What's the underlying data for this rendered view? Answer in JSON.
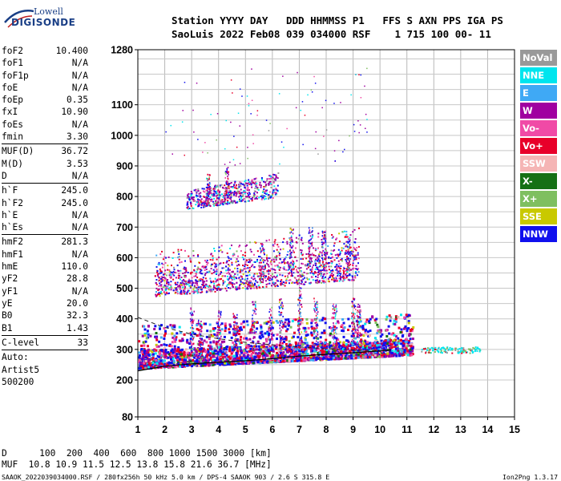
{
  "brand": {
    "line1": "Lowell",
    "line2": "DIGISONDE"
  },
  "header": {
    "line1": "Station YYYY DAY   DDD HHMMSS P1   FFS S AXN PPS IGA PS",
    "line2": "SaoLuis 2022 Feb08 039 034000 RSF    1 715 100 00- 11"
  },
  "params_a": [
    {
      "label": "foF2",
      "value": "10.400"
    },
    {
      "label": "foF1",
      "value": "N/A"
    },
    {
      "label": "foF1p",
      "value": "N/A"
    },
    {
      "label": "foE",
      "value": "N/A"
    },
    {
      "label": "foEp",
      "value": "0.35"
    },
    {
      "label": "fxI",
      "value": "10.90"
    },
    {
      "label": "foEs",
      "value": "N/A"
    },
    {
      "label": "fmin",
      "value": "3.30"
    }
  ],
  "params_b": [
    {
      "label": "MUF(D)",
      "value": "36.72"
    },
    {
      "label": "M(D)",
      "value": "3.53"
    },
    {
      "label": "D",
      "value": "N/A"
    }
  ],
  "params_c": [
    {
      "label": "h`F",
      "value": "245.0"
    },
    {
      "label": "h`F2",
      "value": "245.0"
    },
    {
      "label": "h`E",
      "value": "N/A"
    },
    {
      "label": "h`Es",
      "value": "N/A"
    }
  ],
  "params_d": [
    {
      "label": "hmF2",
      "value": "281.3"
    },
    {
      "label": "hmF1",
      "value": "N/A"
    },
    {
      "label": "hmE",
      "value": "110.0"
    },
    {
      "label": "yF2",
      "value": "28.8"
    },
    {
      "label": "yF1",
      "value": "N/A"
    },
    {
      "label": "yE",
      "value": "20.0"
    },
    {
      "label": "B0",
      "value": "32.3"
    },
    {
      "label": "B1",
      "value": "1.43"
    }
  ],
  "params_e": [
    {
      "label": "C-level",
      "value": "33"
    }
  ],
  "auto": {
    "line1": "Auto:",
    "line2": "Artist5",
    "line3": "500200"
  },
  "legend": [
    {
      "label": "NoVal",
      "color": "#999999"
    },
    {
      "label": "NNE",
      "color": "#00e5ee"
    },
    {
      "label": "E",
      "color": "#3fa9f5"
    },
    {
      "label": "W",
      "color": "#a000a0"
    },
    {
      "label": "Vo-",
      "color": "#f04aa6"
    },
    {
      "label": "Vo+",
      "color": "#e8002a"
    },
    {
      "label": "SSW",
      "color": "#f5b5b5"
    },
    {
      "label": "X-",
      "color": "#157015"
    },
    {
      "label": "X+",
      "color": "#7fbf60"
    },
    {
      "label": "SSE",
      "color": "#c9c900"
    },
    {
      "label": "NNW",
      "color": "#1010ee"
    }
  ],
  "footer": {
    "line1": "D      100  200  400  600  800 1000 1500 3000 [km]",
    "line2": "MUF  10.8 10.9 11.5 12.5 13.8 15.8 21.6 36.7 [MHz]",
    "line3": "SAAOK_2022039034000.RSF / 280fx256h 50 kHz 5.0 km / DPS-4 SAAOK 903 / 2.6 S 315.8 E",
    "version": "Ion2Png 1.3.17"
  },
  "chart_data": {
    "type": "scatter",
    "x_axis": {
      "min": 1,
      "max": 15,
      "ticks": [
        1,
        2,
        3,
        4,
        5,
        6,
        7,
        8,
        9,
        10,
        11,
        12,
        13,
        14,
        15
      ]
    },
    "y_axis": {
      "min": 80,
      "max": 1280,
      "ticks": [
        80,
        200,
        300,
        400,
        500,
        600,
        700,
        800,
        900,
        1000,
        1100,
        1280
      ]
    },
    "grid": true,
    "trace_clusters": [
      {
        "name": "F2 1st hop",
        "x_range": [
          1.0,
          11.2
        ],
        "h_lower": [
          240,
          285
        ],
        "h_upper": [
          300,
          340
        ]
      },
      {
        "name": "F2 2nd hop",
        "x_range": [
          1.6,
          9.2
        ],
        "h_lower": [
          475,
          530
        ],
        "h_upper": [
          560,
          640
        ]
      },
      {
        "name": "F2 3rd hop",
        "x_range": [
          2.8,
          6.2
        ],
        "h_lower": [
          760,
          800
        ],
        "h_upper": [
          820,
          880
        ]
      }
    ],
    "extraordinary_trace": {
      "x_range": [
        11.5,
        13.7
      ],
      "h": [
        290,
        310
      ]
    },
    "profile_curve": [
      [
        1,
        230
      ],
      [
        2,
        245
      ],
      [
        3,
        253
      ],
      [
        4,
        258
      ],
      [
        5,
        263
      ],
      [
        6,
        270
      ],
      [
        7,
        278
      ],
      [
        8,
        284
      ],
      [
        9,
        289
      ],
      [
        10,
        295
      ],
      [
        10.4,
        300
      ]
    ],
    "dashed_curve": [
      [
        1,
        405
      ],
      [
        1.5,
        388
      ],
      [
        2,
        372
      ],
      [
        3,
        350
      ],
      [
        4,
        335
      ],
      [
        5,
        323
      ],
      [
        6,
        315
      ],
      [
        7,
        308
      ],
      [
        8,
        302
      ],
      [
        9,
        298
      ],
      [
        10.4,
        295
      ]
    ]
  }
}
